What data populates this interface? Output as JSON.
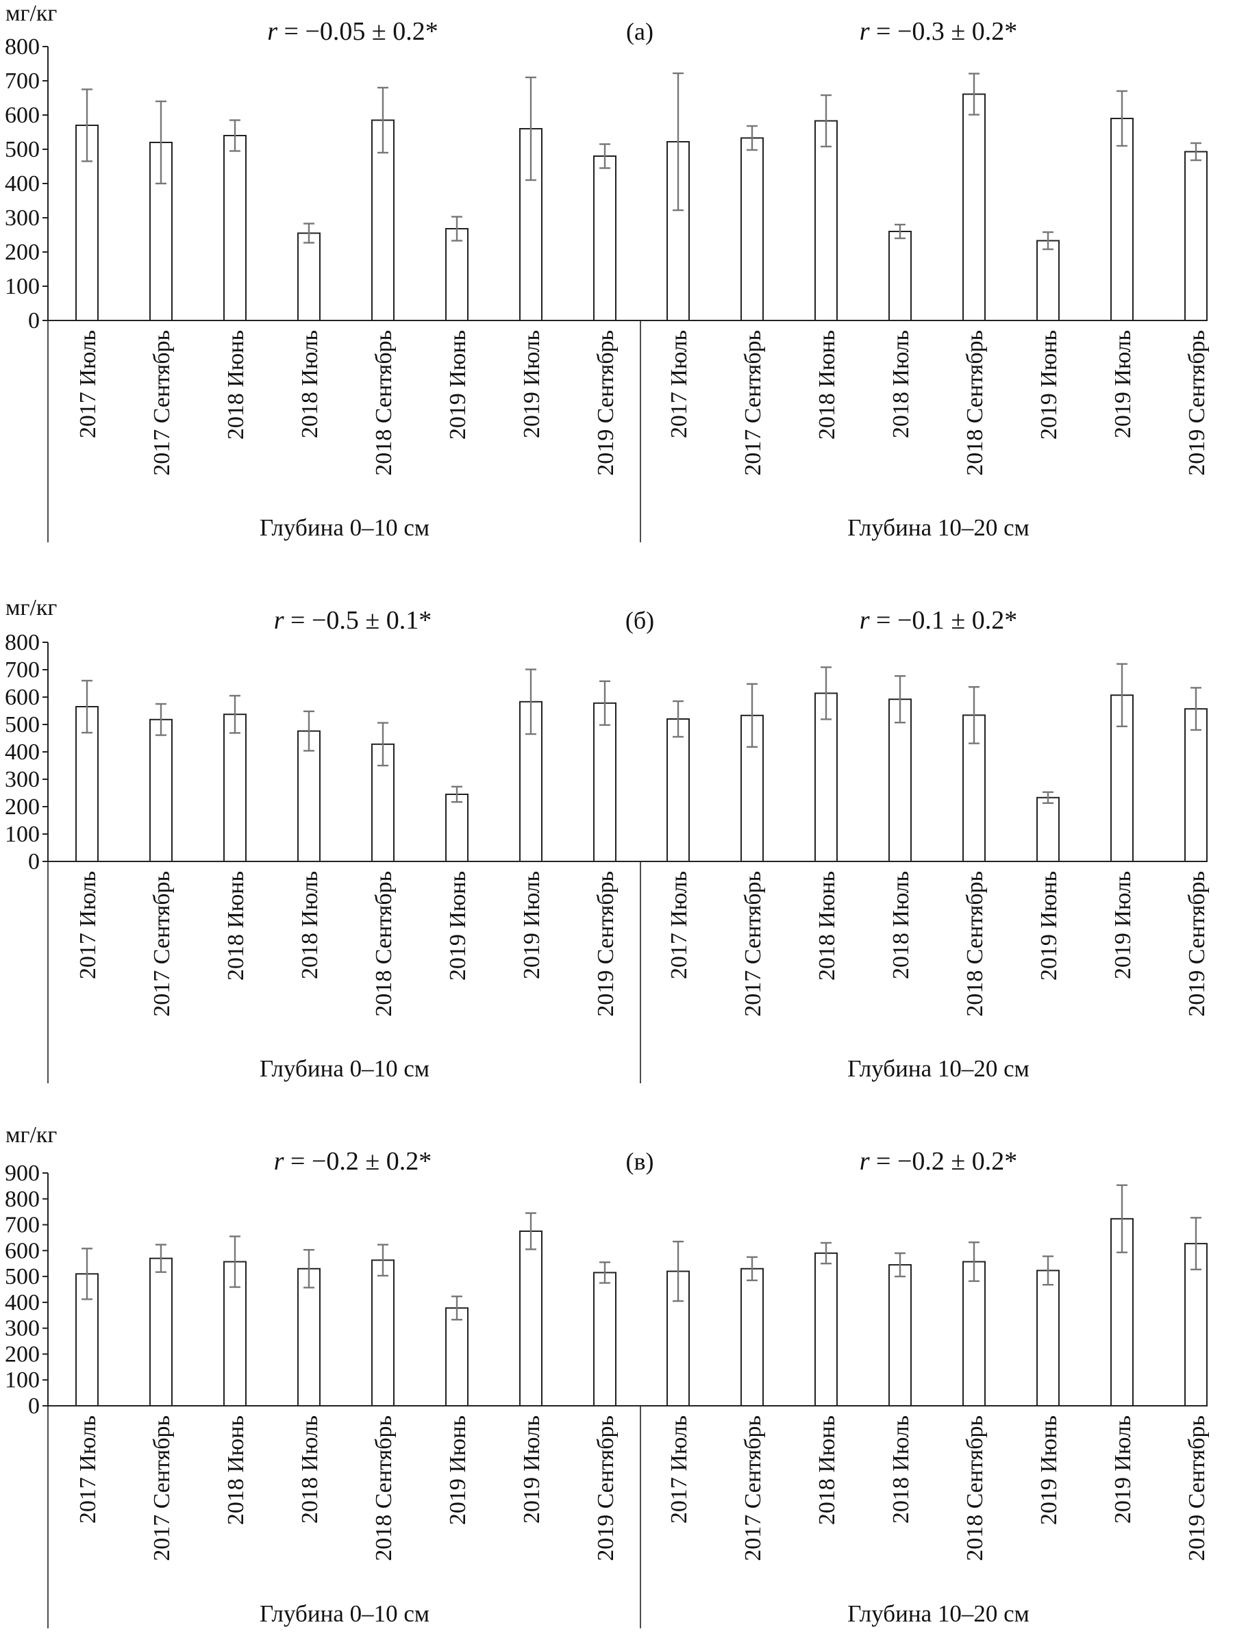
{
  "figure": {
    "panels_count": 3,
    "group_labels": [
      "Глубина 0–10 см",
      "Глубина 10–20 см"
    ]
  },
  "chart_data": [
    {
      "type": "bar",
      "panel_label": "(а)",
      "unit_label": "мг/кг",
      "ylim": [
        0,
        800
      ],
      "yticks": [
        0,
        100,
        200,
        300,
        400,
        500,
        600,
        700,
        800
      ],
      "groups": [
        {
          "name": "Глубина 0–10 см",
          "annotation": "r = −0.05 ± 0.2*",
          "categories": [
            "2017 Июль",
            "2017 Сентябрь",
            "2018 Июнь",
            "2018 Июль",
            "2018 Сентябрь",
            "2019 Июнь",
            "2019 Июль",
            "2019 Сентябрь"
          ],
          "values": [
            570,
            520,
            540,
            255,
            585,
            268,
            560,
            480
          ],
          "errors": [
            105,
            120,
            45,
            28,
            95,
            35,
            150,
            35
          ]
        },
        {
          "name": "Глубина 10–20 см",
          "annotation": "r = −0.3 ± 0.2*",
          "categories": [
            "2017 Июль",
            "2017 Сентябрь",
            "2018 Июнь",
            "2018 Июль",
            "2018 Сентябрь",
            "2019 Июнь",
            "2019 Июль",
            "2019 Сентябрь"
          ],
          "values": [
            522,
            533,
            583,
            260,
            661,
            233,
            590,
            493
          ],
          "errors": [
            200,
            35,
            75,
            20,
            60,
            25,
            80,
            25
          ]
        }
      ]
    },
    {
      "type": "bar",
      "panel_label": "(б)",
      "unit_label": "мг/кг",
      "ylim": [
        0,
        800
      ],
      "yticks": [
        0,
        100,
        200,
        300,
        400,
        500,
        600,
        700,
        800
      ],
      "groups": [
        {
          "name": "Глубина 0–10 см",
          "annotation": "r = −0.5 ± 0.1*",
          "categories": [
            "2017 Июль",
            "2017 Сентябрь",
            "2018 Июнь",
            "2018 Июль",
            "2018 Сентябрь",
            "2019 Июнь",
            "2019 Июль",
            "2019 Сентябрь"
          ],
          "values": [
            565,
            518,
            537,
            476,
            428,
            245,
            583,
            578
          ],
          "errors": [
            95,
            57,
            68,
            72,
            78,
            28,
            118,
            80
          ]
        },
        {
          "name": "Глубина 10–20 см",
          "annotation": "r = −0.1 ± 0.2*",
          "categories": [
            "2017 Июль",
            "2017 Сентябрь",
            "2018 Июнь",
            "2018 Июль",
            "2018 Сентябрь",
            "2019 Июнь",
            "2019 Июль",
            "2019 Сентябрь"
          ],
          "values": [
            520,
            533,
            614,
            592,
            534,
            233,
            607,
            557
          ],
          "errors": [
            65,
            115,
            95,
            85,
            103,
            20,
            114,
            77
          ]
        }
      ]
    },
    {
      "type": "bar",
      "panel_label": "(в)",
      "unit_label": "мг/кг",
      "ylim": [
        0,
        900
      ],
      "yticks": [
        0,
        100,
        200,
        300,
        400,
        500,
        600,
        700,
        800,
        900
      ],
      "groups": [
        {
          "name": "Глубина 0–10 см",
          "annotation": "r = −0.2 ± 0.2*",
          "categories": [
            "2017 Июль",
            "2017 Сентябрь",
            "2018 Июнь",
            "2018 Июль",
            "2018 Сентябрь",
            "2019 Июнь",
            "2019 Июль",
            "2019 Сентябрь"
          ],
          "values": [
            510,
            570,
            557,
            530,
            563,
            378,
            675,
            515
          ],
          "errors": [
            98,
            53,
            98,
            73,
            60,
            45,
            70,
            40
          ]
        },
        {
          "name": "Глубина 10–20 см",
          "annotation": "r = −0.2 ± 0.2*",
          "categories": [
            "2017 Июль",
            "2017 Сентябрь",
            "2018 Июнь",
            "2018 Июль",
            "2018 Сентябрь",
            "2019 Июнь",
            "2019 Июль",
            "2019 Сентябрь"
          ],
          "values": [
            520,
            530,
            590,
            545,
            557,
            523,
            723,
            627
          ],
          "errors": [
            115,
            45,
            40,
            45,
            75,
            55,
            130,
            100
          ]
        }
      ]
    }
  ]
}
